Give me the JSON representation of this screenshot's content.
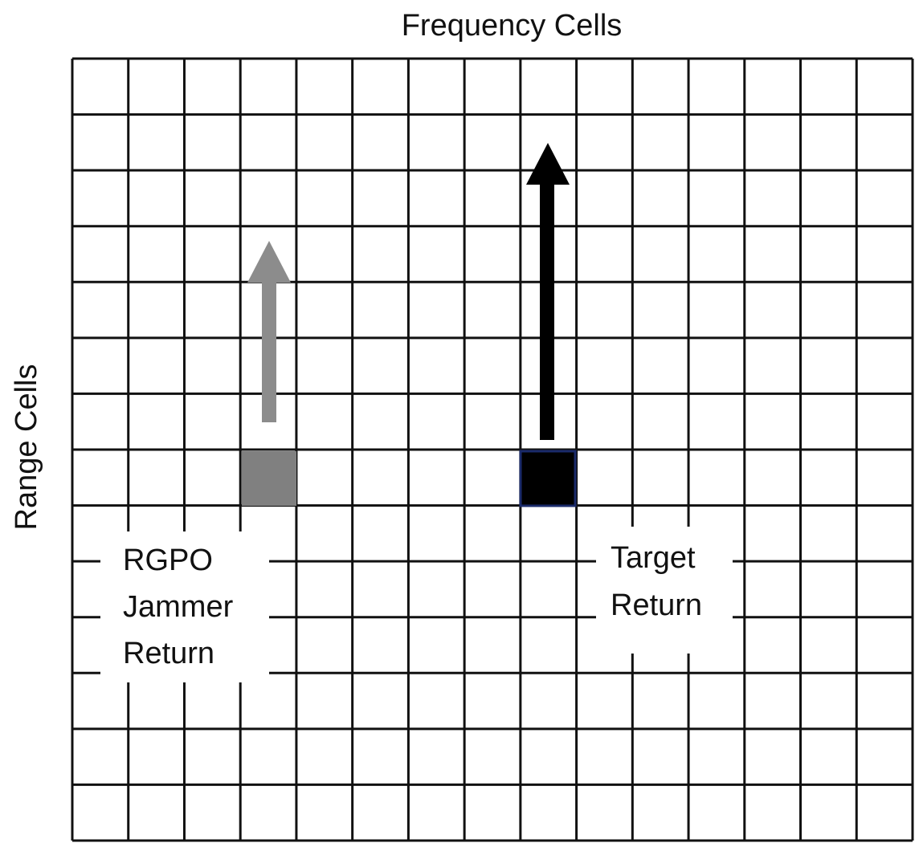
{
  "header": {
    "title": "Frequency Cells"
  },
  "axis": {
    "y_label": "Range Cells"
  },
  "labels": {
    "jammer": {
      "lines": [
        "RGPO",
        "Jammer",
        "Return"
      ]
    },
    "target": {
      "lines": [
        "Target",
        "Return"
      ]
    }
  }
}
